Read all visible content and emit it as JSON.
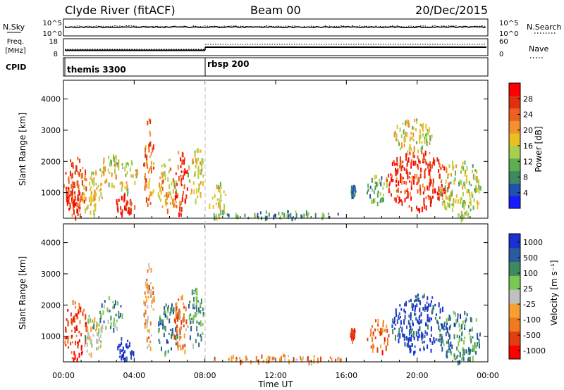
{
  "header": {
    "title": "Clyde River (fitACF)",
    "beam": "Beam 00",
    "date": "20/Dec/2015"
  },
  "status_panels": {
    "nsky": {
      "label": "N.Sky",
      "ticks_left": [
        "10^5",
        "10^0"
      ],
      "ticks_right": [
        "10^5",
        "10^0"
      ],
      "right_label": "N.Search"
    },
    "freq": {
      "label_line1": "Freq.",
      "label_line2": "[MHz]",
      "ticks_left": [
        "18",
        "8"
      ],
      "ticks_right": [
        "60",
        "0"
      ],
      "right_label": "Nave"
    },
    "cpid": {
      "label": "CPID",
      "segments": [
        {
          "name": "themis 3300",
          "start": 0
        },
        {
          "name": "rbsp 200",
          "start": 8.0
        }
      ]
    }
  },
  "chart_data": [
    {
      "type": "heatmap",
      "title": "",
      "xlabel": "",
      "ylabel": "Slant Range [km]",
      "xlim": [
        0,
        24
      ],
      "ylim": [
        180,
        4600
      ],
      "yticks": [
        1000,
        2000,
        3000,
        4000
      ],
      "xticks": [
        "00:00",
        "04:00",
        "08:00",
        "12:00",
        "16:00",
        "20:00",
        "00:00"
      ],
      "colorbar": {
        "label": "Power [dB]",
        "range": [
          0,
          32
        ],
        "tick_values": [
          4,
          8,
          12,
          16,
          20,
          24,
          28
        ],
        "tick_labels": [
          "4",
          "8",
          "12",
          "16",
          "20",
          "24",
          "28"
        ]
      },
      "clusters": [
        {
          "t0": 0.0,
          "t1": 1.3,
          "r0": 250,
          "r1": 2200,
          "level": 0.78
        },
        {
          "t0": 0.1,
          "t1": 0.9,
          "r0": 600,
          "r1": 1300,
          "level": 0.95
        },
        {
          "t0": 1.0,
          "t1": 2.2,
          "r0": 300,
          "r1": 1800,
          "level": 0.55
        },
        {
          "t0": 2.0,
          "t1": 3.3,
          "r0": 1200,
          "r1": 2300,
          "level": 0.55
        },
        {
          "t0": 2.9,
          "t1": 4.0,
          "r0": 300,
          "r1": 1000,
          "level": 0.9
        },
        {
          "t0": 3.1,
          "t1": 4.2,
          "r0": 1000,
          "r1": 2100,
          "level": 0.5
        },
        {
          "t0": 4.5,
          "t1": 5.1,
          "r0": 500,
          "r1": 3400,
          "level": 0.7
        },
        {
          "t0": 5.3,
          "t1": 6.5,
          "r0": 400,
          "r1": 2100,
          "level": 0.55
        },
        {
          "t0": 6.2,
          "t1": 7.0,
          "r0": 300,
          "r1": 2400,
          "level": 0.82
        },
        {
          "t0": 7.0,
          "t1": 7.9,
          "r0": 700,
          "r1": 2600,
          "level": 0.5
        },
        {
          "t0": 8.2,
          "t1": 9.2,
          "r0": 200,
          "r1": 1400,
          "level": 0.45
        },
        {
          "t0": 9.1,
          "t1": 16.0,
          "r0": 200,
          "r1": 450,
          "level": 0.3
        },
        {
          "t0": 16.2,
          "t1": 16.5,
          "r0": 900,
          "r1": 1300,
          "level": 0.25
        },
        {
          "t0": 17.1,
          "t1": 18.3,
          "r0": 700,
          "r1": 1600,
          "level": 0.35
        },
        {
          "t0": 18.2,
          "t1": 21.8,
          "r0": 500,
          "r1": 2400,
          "level": 0.85
        },
        {
          "t0": 18.6,
          "t1": 20.8,
          "r0": 2300,
          "r1": 3400,
          "level": 0.5
        },
        {
          "t0": 21.2,
          "t1": 23.6,
          "r0": 200,
          "r1": 2100,
          "level": 0.45
        }
      ]
    },
    {
      "type": "heatmap",
      "title": "",
      "xlabel": "Time UT",
      "ylabel": "Slant Range [km]",
      "xlim": [
        0,
        24
      ],
      "ylim": [
        180,
        4600
      ],
      "yticks": [
        1000,
        2000,
        3000,
        4000
      ],
      "xticks": [
        "00:00",
        "04:00",
        "08:00",
        "12:00",
        "16:00",
        "20:00",
        "00:00"
      ],
      "colorbar": {
        "label": "Velocity [m s⁻¹]",
        "range": [
          -1200,
          1200
        ],
        "tick_labels": [
          "1000",
          "500",
          "100",
          "25",
          "-25",
          "-100",
          "-500",
          "-1000"
        ]
      },
      "clusters": [
        {
          "t0": 0.0,
          "t1": 1.3,
          "r0": 250,
          "r1": 2200,
          "level": 0.15
        },
        {
          "t0": 1.0,
          "t1": 2.2,
          "r0": 400,
          "r1": 1800,
          "level": 0.5
        },
        {
          "t0": 2.0,
          "t1": 3.3,
          "r0": 1200,
          "r1": 2300,
          "level": 0.7
        },
        {
          "t0": 2.9,
          "t1": 4.0,
          "r0": 300,
          "r1": 1000,
          "level": 0.92
        },
        {
          "t0": 4.5,
          "t1": 5.1,
          "r0": 500,
          "r1": 3400,
          "level": 0.35
        },
        {
          "t0": 5.3,
          "t1": 6.5,
          "r0": 400,
          "r1": 2100,
          "level": 0.8
        },
        {
          "t0": 6.2,
          "t1": 7.0,
          "r0": 300,
          "r1": 2400,
          "level": 0.3
        },
        {
          "t0": 7.0,
          "t1": 7.9,
          "r0": 700,
          "r1": 2600,
          "level": 0.7
        },
        {
          "t0": 8.2,
          "t1": 16.0,
          "r0": 200,
          "r1": 450,
          "level": 0.3
        },
        {
          "t0": 16.2,
          "t1": 16.5,
          "r0": 900,
          "r1": 1300,
          "level": 0.1
        },
        {
          "t0": 17.1,
          "t1": 18.4,
          "r0": 500,
          "r1": 1600,
          "level": 0.25
        },
        {
          "t0": 18.5,
          "t1": 21.7,
          "r0": 500,
          "r1": 2400,
          "level": 0.9
        },
        {
          "t0": 21.2,
          "t1": 23.6,
          "r0": 200,
          "r1": 1900,
          "level": 0.75
        }
      ]
    }
  ],
  "colors": {
    "power_scale": [
      "#1a1aff",
      "#2050b0",
      "#3d8a60",
      "#5faf50",
      "#a8d050",
      "#e8c020",
      "#f49030",
      "#ee6020",
      "#e03010",
      "#ff0000"
    ],
    "velocity_scale": [
      "#ff0000",
      "#e04010",
      "#f07a20",
      "#f5a030",
      "#c0c0c0",
      "#7ac850",
      "#3d8a60",
      "#2a5aa0",
      "#1a30d0"
    ],
    "marker_line": "#c8c8c8"
  }
}
